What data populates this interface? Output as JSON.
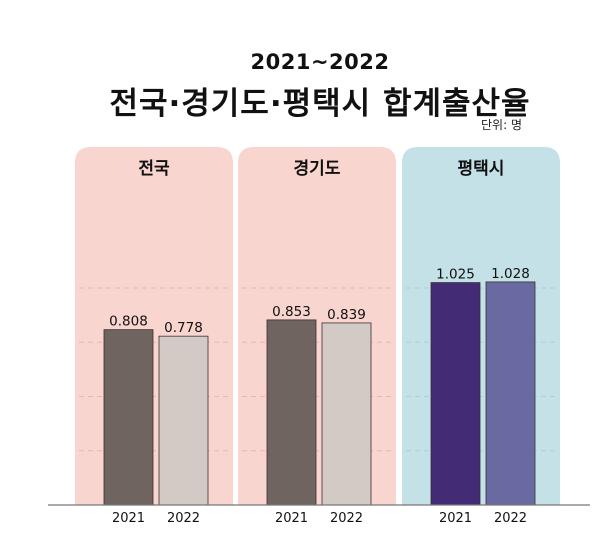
{
  "header": {
    "subtitle": "2021~2022",
    "title": "전국·경기도·평택시 합계출산율",
    "unit": "단위: 명"
  },
  "colors": {
    "national_bg": "#f9d5cf",
    "gyeonggi_bg": "#f9d5cf",
    "pyeongtaek_bg": "#c4e1e8",
    "bar_2021_gray": "#6f6460",
    "bar_2022_gray": "#d3c9c5",
    "bar_2021_purple": "#432c75",
    "bar_2022_purple": "#6a6aa2",
    "gridline": "#e8b7ae",
    "baseline": "#777777"
  },
  "chart_data": {
    "type": "bar",
    "title": "전국·경기도·평택시 합계출산율",
    "subtitle": "2021~2022",
    "unit": "단위: 명",
    "ylim": [
      0,
      1.2
    ],
    "grid": true,
    "panels": [
      {
        "name": "전국",
        "categories": [
          "2021",
          "2022"
        ],
        "values": [
          0.808,
          0.778
        ],
        "labels": [
          "0.808",
          "0.778"
        ]
      },
      {
        "name": "경기도",
        "categories": [
          "2021",
          "2022"
        ],
        "values": [
          0.853,
          0.839
        ],
        "labels": [
          "0.853",
          "0.839"
        ]
      },
      {
        "name": "평택시",
        "categories": [
          "2021",
          "2022"
        ],
        "values": [
          1.025,
          1.028
        ],
        "labels": [
          "1.025",
          "1.028"
        ]
      }
    ]
  }
}
